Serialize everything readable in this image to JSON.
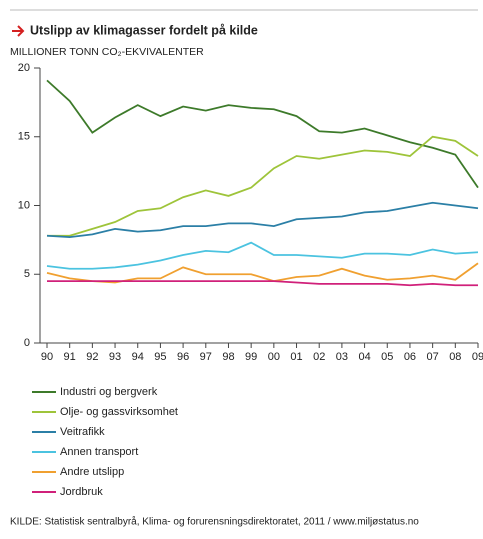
{
  "chart_data": {
    "type": "line",
    "title": "Utslipp av klimagasser fordelt på kilde",
    "y_label": "MILLIONER TONN CO₂-EKVIVALENTER",
    "source": "KILDE: Statistisk sentralbyrå, Klima- og forurensningsdirektoratet, 2011 / www.miljøstatus.no",
    "categories": [
      "90",
      "91",
      "92",
      "93",
      "94",
      "95",
      "96",
      "97",
      "98",
      "99",
      "00",
      "01",
      "02",
      "03",
      "04",
      "05",
      "06",
      "07",
      "08",
      "09"
    ],
    "ylim": [
      0,
      20
    ],
    "yticks": [
      0,
      5,
      10,
      15,
      20
    ],
    "series": [
      {
        "name": "Industri og bergverk",
        "color": "#3d7a2a",
        "values": [
          19.1,
          17.6,
          15.3,
          16.4,
          17.3,
          16.5,
          17.2,
          16.9,
          17.3,
          17.1,
          17.0,
          16.5,
          15.4,
          15.3,
          15.6,
          15.1,
          14.6,
          14.2,
          13.7,
          11.3
        ]
      },
      {
        "name": "Olje- og gassvirksomhet",
        "color": "#9ec43a",
        "values": [
          7.8,
          7.8,
          8.3,
          8.8,
          9.6,
          9.8,
          10.6,
          11.1,
          10.7,
          11.3,
          12.7,
          13.6,
          13.4,
          13.7,
          14.0,
          13.9,
          13.6,
          15.0,
          14.7,
          13.6
        ]
      },
      {
        "name": "Veitrafikk",
        "color": "#2b7fa6",
        "values": [
          7.8,
          7.7,
          7.9,
          8.3,
          8.1,
          8.2,
          8.5,
          8.5,
          8.7,
          8.7,
          8.5,
          9.0,
          9.1,
          9.2,
          9.5,
          9.6,
          9.9,
          10.2,
          10.0,
          9.8
        ]
      },
      {
        "name": "Annen transport",
        "color": "#4bc3e0",
        "values": [
          5.6,
          5.4,
          5.4,
          5.5,
          5.7,
          6.0,
          6.4,
          6.7,
          6.6,
          7.3,
          6.4,
          6.4,
          6.3,
          6.2,
          6.5,
          6.5,
          6.4,
          6.8,
          6.5,
          6.6
        ]
      },
      {
        "name": "Andre utslipp",
        "color": "#f0a030",
        "values": [
          5.1,
          4.7,
          4.5,
          4.4,
          4.7,
          4.7,
          5.5,
          5.0,
          5.0,
          5.0,
          4.5,
          4.8,
          4.9,
          5.4,
          4.9,
          4.6,
          4.7,
          4.9,
          4.6,
          5.8
        ]
      },
      {
        "name": "Jordbruk",
        "color": "#d0207a",
        "values": [
          4.5,
          4.5,
          4.5,
          4.5,
          4.5,
          4.5,
          4.5,
          4.5,
          4.5,
          4.5,
          4.5,
          4.4,
          4.3,
          4.3,
          4.3,
          4.3,
          4.2,
          4.3,
          4.2,
          4.2
        ]
      }
    ]
  }
}
